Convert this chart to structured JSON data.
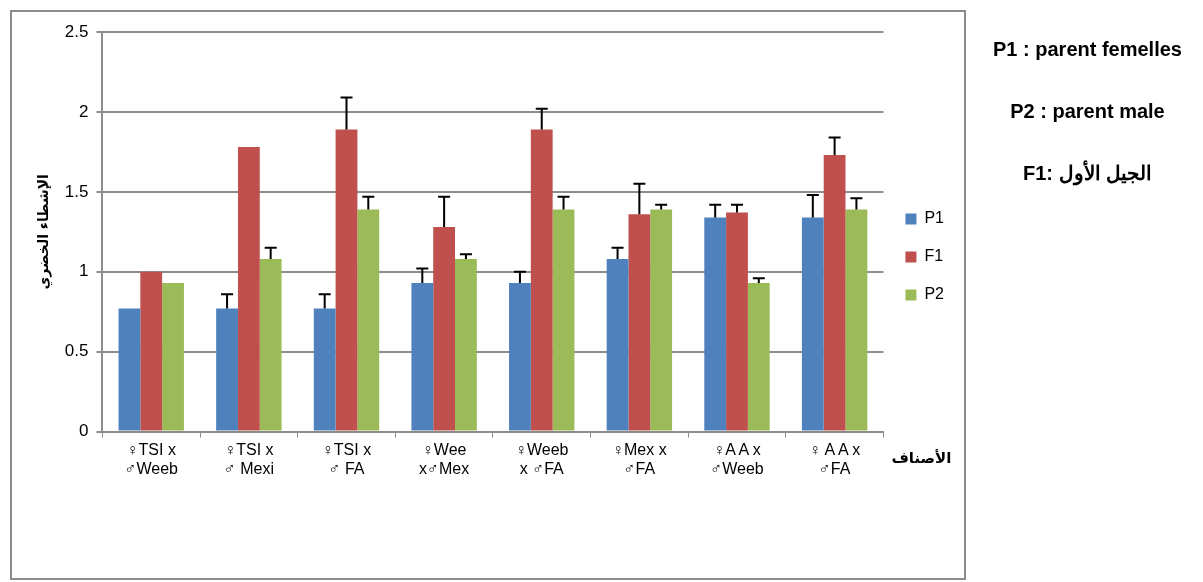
{
  "chart_data": {
    "type": "bar",
    "xlabel": "الأصناف",
    "ylabel": "الإشطاء الخضري",
    "categories": [
      "♀TSI x\n♂Weeb",
      "♀TSI x\n♂ Mexi",
      "♀TSI x\n♂ FA",
      "♀Wee\nx♂Mex",
      "♀Weeb\nx ♂FA",
      "♀Mex x\n♂FA",
      "♀A A x\n♂Weeb",
      "♀ A A x\n♂FA"
    ],
    "series": [
      {
        "name": "P1",
        "color": "#4f81bd",
        "values": [
          0.77,
          0.77,
          0.77,
          0.93,
          0.93,
          1.08,
          1.34,
          1.34
        ],
        "errors": [
          null,
          [
            0.77,
            0.86
          ],
          [
            0.77,
            0.86
          ],
          [
            0.93,
            1.02
          ],
          [
            0.93,
            1.0
          ],
          [
            1.08,
            1.15
          ],
          [
            1.34,
            1.42
          ],
          [
            1.34,
            1.48
          ]
        ]
      },
      {
        "name": "F1",
        "color": "#c0504d",
        "values": [
          1.0,
          1.78,
          1.89,
          1.28,
          1.89,
          1.36,
          1.37,
          1.73
        ],
        "errors": [
          null,
          null,
          [
            1.89,
            2.09
          ],
          [
            1.28,
            1.47
          ],
          [
            1.89,
            2.02
          ],
          [
            1.36,
            1.55
          ],
          [
            1.37,
            1.42
          ],
          [
            1.73,
            1.84
          ]
        ]
      },
      {
        "name": "P2",
        "color": "#9bbb59",
        "values": [
          0.93,
          1.08,
          1.39,
          1.08,
          1.39,
          1.39,
          0.93,
          1.39
        ],
        "errors": [
          null,
          [
            1.08,
            1.15
          ],
          [
            1.39,
            1.47
          ],
          [
            1.08,
            1.11
          ],
          [
            1.39,
            1.47
          ],
          [
            1.39,
            1.42
          ],
          [
            0.93,
            0.96
          ],
          [
            1.39,
            1.46
          ]
        ]
      }
    ],
    "ylim": [
      0,
      2.5
    ],
    "yticks": [
      0,
      0.5,
      1,
      1.5,
      2,
      2.5
    ],
    "grid": "y",
    "legend": "right",
    "annotations": [
      "P1 : parent femelles",
      "P2 : parent male",
      "F1: الجيل الأول"
    ]
  }
}
